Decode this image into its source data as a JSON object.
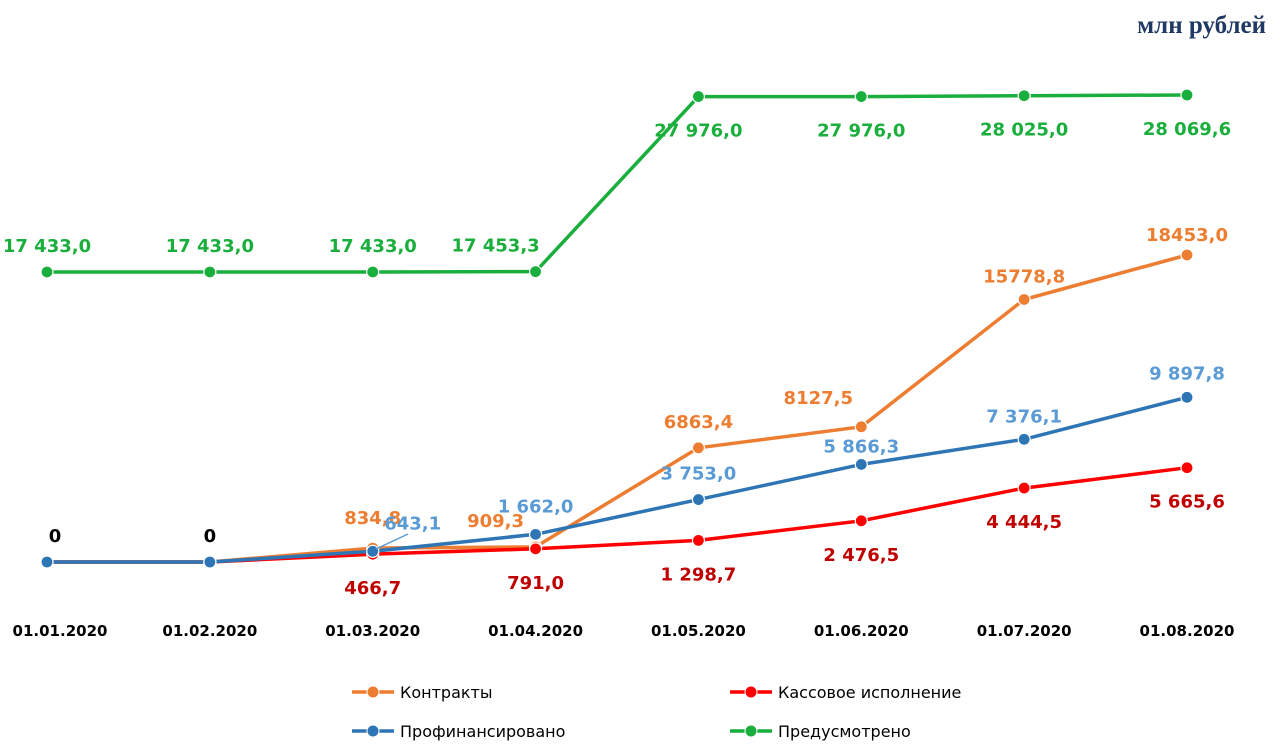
{
  "unit_label": "млн рублей",
  "chart_data": {
    "type": "line",
    "title": "",
    "xlabel": "",
    "ylabel": "",
    "categories": [
      "01.01.2020",
      "01.02.2020",
      "01.03.2020",
      "01.04.2020",
      "01.05.2020",
      "01.06.2020",
      "01.07.2020",
      "01.08.2020"
    ],
    "ylim": [
      0,
      28069.6
    ],
    "grid": false,
    "legend_position": "bottom",
    "series": [
      {
        "name": "Предусмотрено",
        "color": "#1aae3c",
        "label_color": "#1aae3c",
        "values": [
          17433.0,
          17433.0,
          17433.0,
          17453.3,
          27976.0,
          27976.0,
          28025.0,
          28069.6
        ],
        "labels": [
          "17 433,0",
          "17 433,0",
          "17 433,0",
          "17 453,3",
          "27 976,0",
          "27 976,0",
          "28 025,0",
          "28 069,6"
        ]
      },
      {
        "name": "Контракты",
        "color": "#ed7d31",
        "label_color": "#ed7d31",
        "values": [
          0,
          0,
          834.8,
          909.3,
          6863.4,
          8127.5,
          15778.8,
          18453.0
        ],
        "labels": [
          "",
          "",
          "834,8",
          "909,3",
          "6863,4",
          "8127,5",
          "15778,8",
          "18453,0"
        ]
      },
      {
        "name": "Профинансировано",
        "color": "#2e75b6",
        "label_color": "#5b9bd5",
        "values": [
          0,
          0,
          643.1,
          1662.0,
          3753.0,
          5866.3,
          7376.1,
          9897.8
        ],
        "labels": [
          "0",
          "0",
          "643,1",
          "1 662,0",
          "3 753,0",
          "5 866,3",
          "7 376,1",
          "9 897,8"
        ]
      },
      {
        "name": "Кассовое исполнение",
        "color": "#ff0000",
        "label_color": "#c00000",
        "values": [
          0,
          0,
          466.7,
          791.0,
          1298.7,
          2476.5,
          4444.5,
          5665.6
        ],
        "labels": [
          "",
          "",
          "466,7",
          "791,0",
          "1 298,7",
          "2 476,5",
          "4 444,5",
          "5 665,6"
        ]
      }
    ]
  }
}
